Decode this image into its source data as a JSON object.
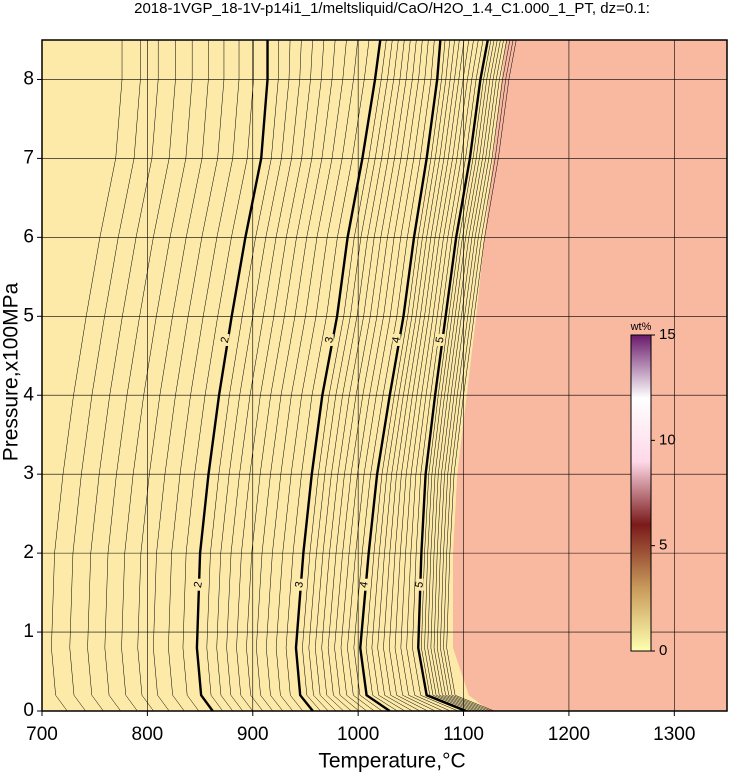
{
  "chart_data": {
    "type": "contour",
    "title": "2018-1VGP_18-1V-p14i1_1/meltsliquid/CaO/H2O_1.4_C1.000_1_PT, dz=0.1:",
    "xlabel": "Temperature,°C",
    "ylabel": "Pressure,x100MPa",
    "xlim": [
      700,
      1350
    ],
    "ylim": [
      0,
      8.5
    ],
    "xticks": [
      700,
      800,
      900,
      1000,
      1100,
      1200,
      1300
    ],
    "yticks": [
      0,
      1,
      2,
      3,
      4,
      5,
      6,
      7,
      8
    ],
    "grid": true,
    "background_color": "#fdeaa8",
    "region": {
      "color": "#f9b8a0",
      "pressures": [
        0,
        0.2,
        0.8,
        2,
        3,
        4,
        5,
        6,
        7,
        8,
        8.5
      ],
      "temperatures": [
        1125,
        1105,
        1090,
        1090,
        1094,
        1103,
        1112,
        1120,
        1128,
        1136,
        1140
      ]
    },
    "pressures": [
      0,
      0.2,
      0.8,
      2,
      3,
      4,
      5,
      6,
      7,
      8,
      8.5
    ],
    "contours": [
      {
        "label": "2",
        "temperatures": [
          862,
          851,
          847,
          850,
          858,
          868,
          880,
          893,
          908,
          914,
          914
        ]
      },
      {
        "label": "3",
        "temperatures": [
          957,
          945,
          941,
          948,
          956,
          966,
          980,
          990,
          1004,
          1016,
          1021
        ]
      },
      {
        "label": "4",
        "temperatures": [
          1030,
          1008,
          1002,
          1010,
          1018,
          1030,
          1043,
          1053,
          1065,
          1075,
          1078
        ]
      },
      {
        "label": "5",
        "temperatures": [
          1102,
          1065,
          1057,
          1060,
          1064,
          1073,
          1083,
          1093,
          1106,
          1116,
          1123
        ]
      }
    ],
    "colorbar": {
      "label": "wt%",
      "lim": [
        0,
        15
      ],
      "ticks": [
        0,
        5,
        10,
        15
      ],
      "colors": [
        "#ffffb0",
        "#c89a5a",
        "#7a1a1a",
        "#ffd8e8",
        "#ffffff",
        "#6a1a6a"
      ]
    }
  }
}
